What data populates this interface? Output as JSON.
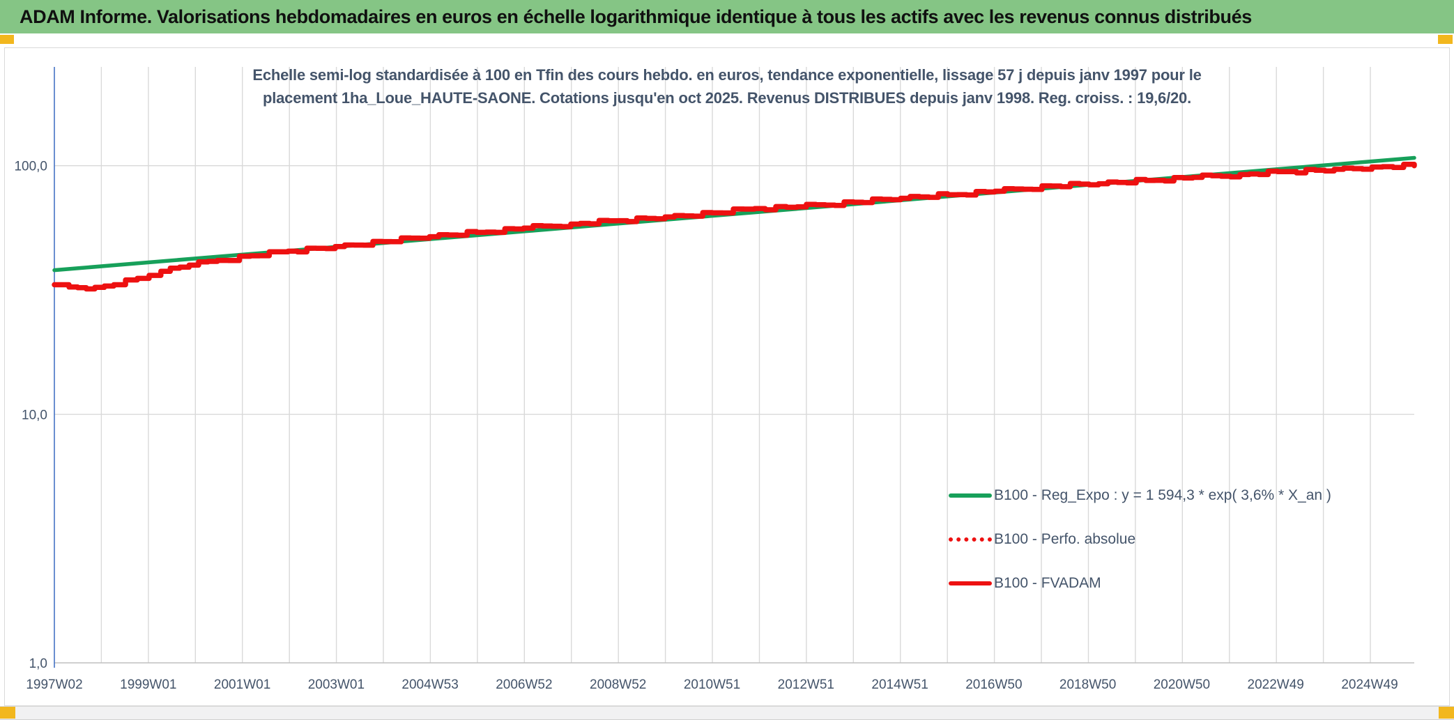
{
  "banner": {
    "title": "ADAM Informe. Valorisations hebdomadaires en euros en échelle logarithmique identique à tous les actifs avec les revenus connus distribués",
    "bg_color": "#85C585"
  },
  "chart": {
    "title_line1": "Echelle semi-log standardisée à 100 en Tfin des cours hebdo. en euros, tendance exponentielle, lissage 57 j depuis janv 1997 pour le",
    "title_line2": "placement 1ha_Loue_HAUTE-SAONE. Cotations jusqu'en oct 2025. Revenus DISTRIBUES depuis janv 1998. Reg. croiss. : 19,6/20.",
    "title_color": "#44546A",
    "legend": [
      {
        "label": "B100 - Reg_Expo : y = 1 594,3 * exp( 3,6% *  X_an )",
        "color": "#17A05A",
        "style": "solid"
      },
      {
        "label": "B100 - Perfo. absolue",
        "color": "#ED1111",
        "style": "dotted"
      },
      {
        "label": "B100 - FVADAM",
        "color": "#ED1111",
        "style": "solid"
      }
    ]
  },
  "chart_data": {
    "type": "line",
    "y_scale": "log10",
    "grid": true,
    "legend_position": "inside-right",
    "y_tick_labels": [
      "100,0",
      "10,0",
      "1,0"
    ],
    "y_tick_values": [
      100,
      10,
      1
    ],
    "ylim": [
      1,
      250
    ],
    "x_tick_labels": [
      "1997W02",
      "1999W01",
      "2001W01",
      "2003W01",
      "2004W53",
      "2006W52",
      "2008W52",
      "2010W51",
      "2012W51",
      "2014W51",
      "2016W50",
      "2018W50",
      "2020W50",
      "2022W49",
      "2024W49"
    ],
    "x_axis_years": [
      1997.04,
      2025.9
    ],
    "series": [
      {
        "name": "B100 - Reg_Expo : y = 1 594,3 * exp( 3,6% *  X_an )",
        "color": "#17A05A",
        "style": "solid",
        "kind": "regression-straight-on-log-scale",
        "points": [
          [
            1997.04,
            38.0
          ],
          [
            2025.9,
            107.5
          ]
        ]
      },
      {
        "name": "B100 - Perfo. absolue",
        "color": "#ED1111",
        "style": "dotted",
        "note": "coincides exactly with B100 - FVADAM (hidden underneath)",
        "points_same_as": "B100 - FVADAM"
      },
      {
        "name": "B100 - FVADAM",
        "color": "#ED1111",
        "style": "solid",
        "end_value_standardized": 100.0,
        "points": [
          [
            1997.04,
            33.2
          ],
          [
            1997.35,
            32.5
          ],
          [
            1997.9,
            32.4
          ],
          [
            1998.3,
            33.2
          ],
          [
            1998.8,
            35.2
          ],
          [
            1999.3,
            37.6
          ],
          [
            1999.9,
            39.8
          ],
          [
            2000.5,
            41.6
          ],
          [
            2001.2,
            43.4
          ],
          [
            2002.0,
            45.3
          ],
          [
            2003.0,
            47.3
          ],
          [
            2004.0,
            49.5
          ],
          [
            2005.0,
            51.8
          ],
          [
            2006.0,
            53.9
          ],
          [
            2007.0,
            56.1
          ],
          [
            2008.0,
            58.2
          ],
          [
            2009.0,
            60.1
          ],
          [
            2010.0,
            62.2
          ],
          [
            2011.0,
            64.6
          ],
          [
            2011.9,
            67.2
          ],
          [
            2012.8,
            68.3
          ],
          [
            2014.0,
            71.3
          ],
          [
            2015.0,
            73.9
          ],
          [
            2016.0,
            76.4
          ],
          [
            2017.0,
            78.9
          ],
          [
            2018.2,
            82.8
          ],
          [
            2019.2,
            84.6
          ],
          [
            2020.2,
            87.2
          ],
          [
            2021.2,
            89.7
          ],
          [
            2022.2,
            92.1
          ],
          [
            2023.2,
            94.6
          ],
          [
            2024.2,
            96.7
          ],
          [
            2025.0,
            98.8
          ],
          [
            2025.9,
            100.0
          ]
        ]
      }
    ]
  }
}
